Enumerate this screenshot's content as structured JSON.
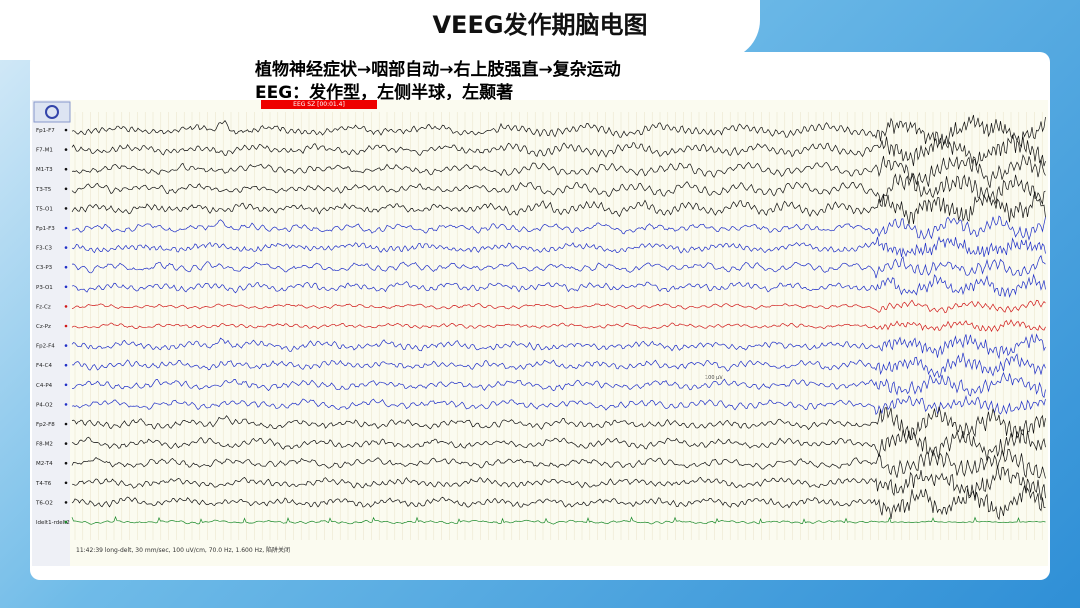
{
  "header": {
    "title": "VEEG发作期脑电图"
  },
  "description": {
    "lines": [
      "植物神经症状→咽部自动→右上肢强直→复杂运动",
      "EEG：发作型，左侧半球，左颞著"
    ]
  },
  "eeg": {
    "marker": "EEG SZ [00:01.4]",
    "channels": [
      "Fp1-F7",
      "F7-M1",
      "M1-T3",
      "T3-T5",
      "T5-O1",
      "Fp1-F3",
      "F3-C3",
      "C3-P3",
      "P3-O1",
      "Fz-Cz",
      "Cz-Pz",
      "Fp2-F4",
      "F4-C4",
      "C4-P4",
      "P4-O2",
      "Fp2-F8",
      "F8-M2",
      "M2-T4",
      "T4-T6",
      "T6-O2",
      "ldelt1-rdelt2"
    ],
    "scale": "100 µV",
    "status": "11:42:39 long-delt, 30 mm/sec, 100 uV/cm, 70.0 Hz, 1.600 Hz, 陷阱关闭"
  }
}
